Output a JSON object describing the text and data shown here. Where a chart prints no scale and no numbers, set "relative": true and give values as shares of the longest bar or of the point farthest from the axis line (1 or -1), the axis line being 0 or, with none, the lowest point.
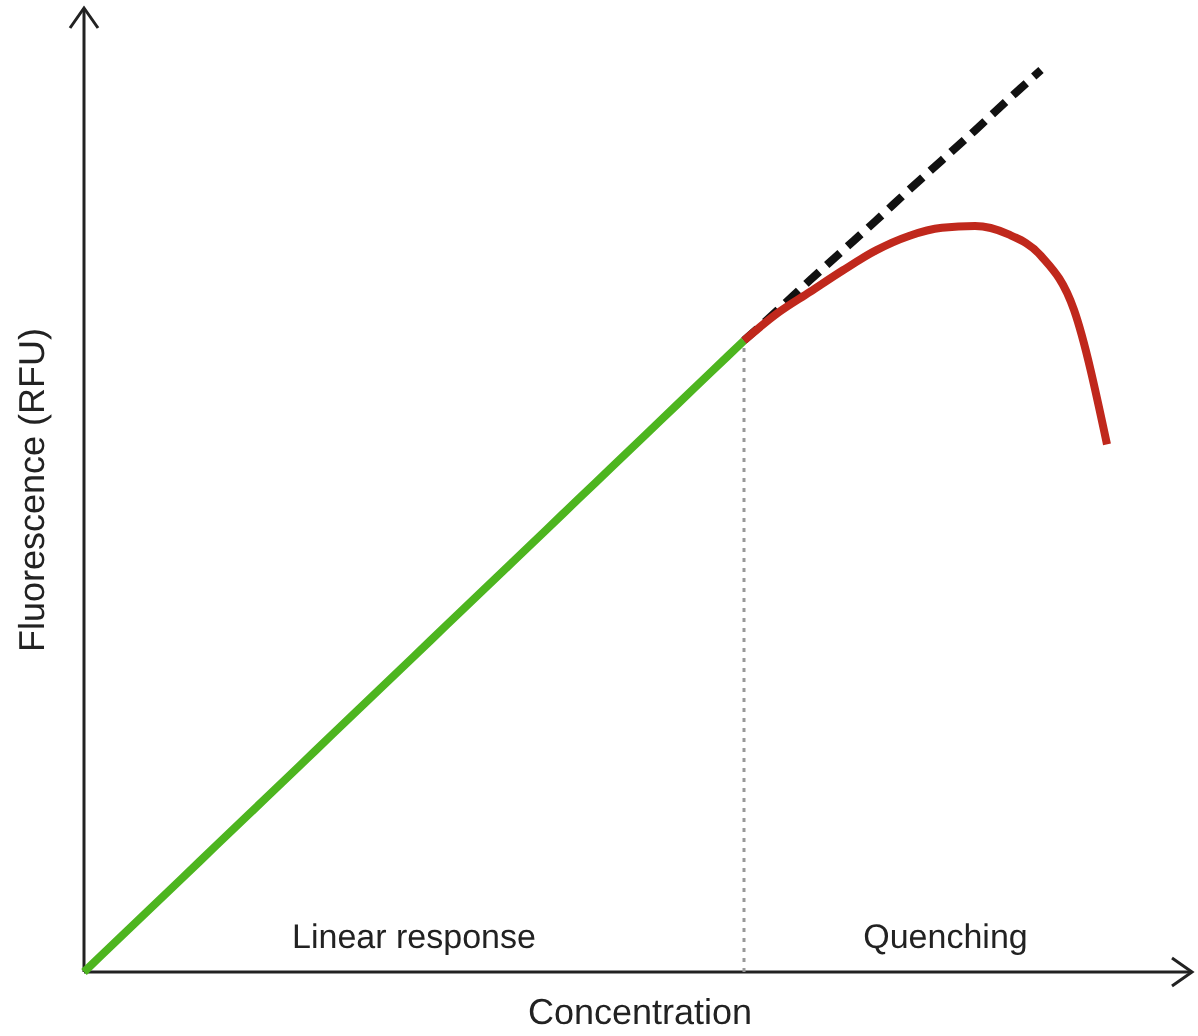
{
  "chart_data": {
    "type": "line",
    "relative": true,
    "xlabel": "Concentration",
    "ylabel": "Fluorescence (RFU)",
    "categories": [
      null,
      null,
      null,
      null,
      null,
      null,
      null,
      null,
      null,
      null,
      null,
      null,
      null,
      null,
      null,
      null,
      null,
      null,
      null,
      null,
      null,
      null,
      null,
      null,
      null,
      null,
      null,
      null,
      null,
      null,
      null,
      null
    ],
    "series": [
      {
        "color": "#4db51f",
        "line_style": "solid",
        "values": [
          0,
          0.035,
          0.07,
          0.105,
          0.14,
          0.175,
          0.21,
          0.245,
          0.28,
          0.315,
          0.35,
          0.385,
          0.42,
          0.455,
          0.49,
          0.525,
          0.56,
          0.595,
          0.63,
          0.665,
          0.7,
          null,
          null,
          null,
          null,
          null,
          null,
          null,
          null,
          null,
          null,
          null
        ]
      },
      {
        "color": "#111111",
        "line_style": "dashed",
        "values": [
          null,
          null,
          null,
          null,
          null,
          null,
          null,
          null,
          null,
          null,
          null,
          null,
          null,
          null,
          null,
          null,
          null,
          null,
          null,
          null,
          0.7,
          0.733,
          0.767,
          0.8,
          0.833,
          0.867,
          0.9,
          0.933,
          0.967,
          1.0,
          null,
          null
        ]
      },
      {
        "color": "#c0281c",
        "line_style": "solid",
        "values": [
          null,
          null,
          null,
          null,
          null,
          null,
          null,
          null,
          null,
          null,
          null,
          null,
          null,
          null,
          null,
          null,
          null,
          null,
          null,
          null,
          0.7,
          0.73,
          0.754,
          0.778,
          0.8,
          0.816,
          0.825,
          0.827,
          0.818,
          0.794,
          0.734,
          0.585
        ]
      }
    ],
    "annotations": [
      "Linear response",
      "Quenching"
    ]
  }
}
